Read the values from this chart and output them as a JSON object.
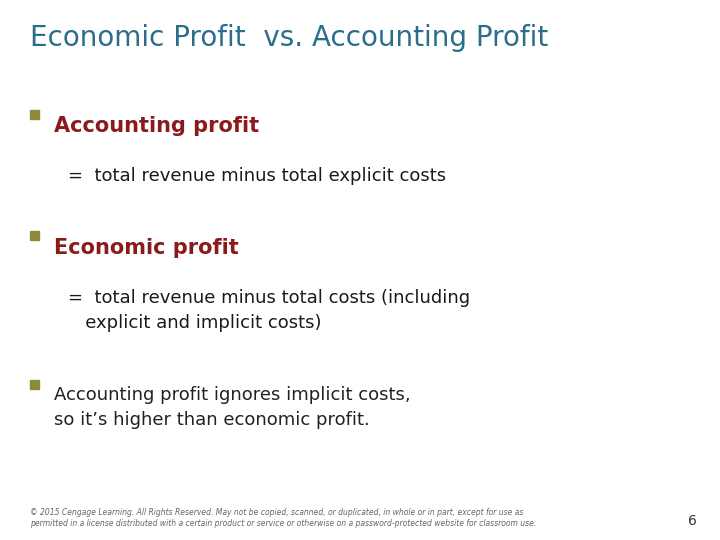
{
  "title": "Economic Profit  vs. Accounting Profit",
  "title_color": "#2B6E8A",
  "background_color": "#FFFFFF",
  "bullet_color": "#8B8B3A",
  "bullet1_heading": "Accounting profit",
  "bullet1_heading_color": "#8B1A1A",
  "bullet1_text": "=  total revenue minus total explicit costs",
  "bullet2_heading": "Economic profit",
  "bullet2_heading_color": "#8B1A1A",
  "bullet2_text": "=  total revenue minus total costs (including\n   explicit and implicit costs)",
  "bullet3_text": "Accounting profit ignores implicit costs,\nso it’s higher than economic profit.",
  "bullet3_color": "#222222",
  "footer_line1": "© 2015 Cengage Learning. All Rights Reserved. May not be copied, scanned, or duplicated, in whole or in part, except for use as",
  "footer_line2": "permitted in a license distributed with a certain product or service or otherwise on a password-protected website for classroom use.",
  "page_number": "6",
  "title_fontsize": 20,
  "heading_fontsize": 15,
  "body_fontsize": 13,
  "footer_fontsize": 5.5
}
